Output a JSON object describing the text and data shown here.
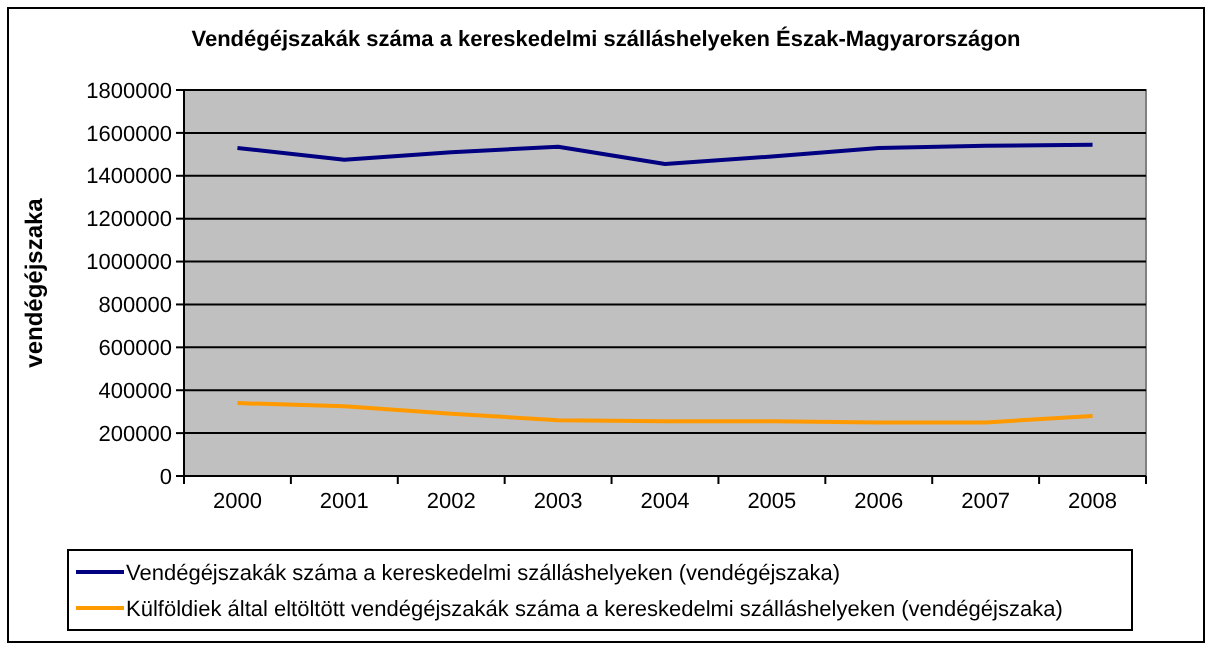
{
  "chart_data": {
    "type": "line",
    "title": "Vendégéjszakák száma a kereskedelmi szálláshelyeken Észak-Magyarországon",
    "ylabel": "vendégéjszaka",
    "categories": [
      "2000",
      "2001",
      "2002",
      "2003",
      "2004",
      "2005",
      "2006",
      "2007",
      "2008"
    ],
    "series": [
      {
        "name": "Vendégéjszakák száma a kereskedelmi szálláshelyeken (vendégéjszaka)",
        "color": "#000080",
        "values": [
          1530000,
          1475000,
          1510000,
          1535000,
          1455000,
          1490000,
          1530000,
          1540000,
          1545000
        ]
      },
      {
        "name": "Külföldiek által eltöltött vendégéjszakák száma a kereskedelmi szálláshelyeken (vendégéjszaka)",
        "color": "#ff9900",
        "values": [
          340000,
          325000,
          290000,
          260000,
          255000,
          255000,
          250000,
          250000,
          280000
        ]
      }
    ],
    "ylim": [
      0,
      1800000
    ],
    "yticks": [
      0,
      200000,
      400000,
      600000,
      800000,
      1000000,
      1200000,
      1400000,
      1600000,
      1800000
    ],
    "grid": "y",
    "legend": "bottom",
    "marker": "none",
    "line_style": "solid"
  }
}
